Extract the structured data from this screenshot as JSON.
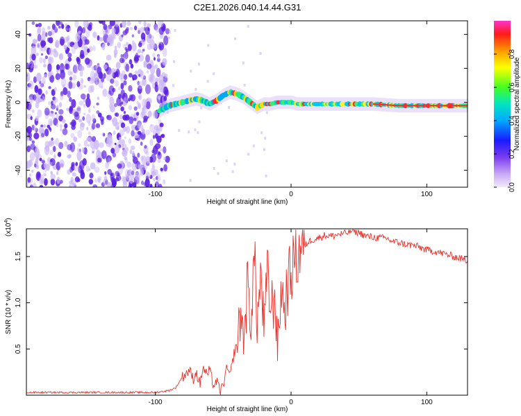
{
  "title": "C2E1.2026.040.14.44.G31",
  "colors": {
    "snr_line": "#e8302a",
    "frame": "#000000",
    "scatter_strong": "#5a1fe0",
    "scatter_weak": "#c9b4f5"
  },
  "chart_data": [
    {
      "type": "heatmap",
      "name": "spectrogram",
      "xlabel": "Height of straight line (km)",
      "ylabel": "Frequency (Hz)",
      "xlim": [
        -195,
        130
      ],
      "ylim": [
        -50,
        48
      ],
      "xticks": [
        -100,
        0,
        100
      ],
      "xtick_labels": [
        "-100",
        "0",
        "100"
      ],
      "yticks": [
        -40,
        -20,
        0,
        20,
        40
      ],
      "ytick_labels": [
        "-40",
        "-20",
        "0",
        "20",
        "40"
      ],
      "noise_region": {
        "x_from": -195,
        "x_to": -97,
        "freq_from": -50,
        "freq_to": 48
      },
      "ridge": {
        "x": [
          -97,
          -90,
          -85,
          -80,
          -75,
          -70,
          -65,
          -60,
          -55,
          -50,
          -45,
          -40,
          -35,
          -30,
          -25,
          -20,
          -15,
          -10,
          -5,
          0,
          5,
          10,
          20,
          40,
          60,
          80,
          100,
          120,
          130
        ],
        "freq": [
          -5,
          -2,
          -1,
          0,
          1,
          2,
          1,
          -1,
          1,
          4,
          6,
          5,
          3,
          0,
          -3,
          -1,
          -1,
          0,
          0,
          0,
          -1,
          -1,
          -1,
          -1,
          -1,
          -2,
          -2,
          -2,
          -2
        ]
      },
      "colorbar": {
        "label": "Normalized spectral amplitude",
        "range": [
          0.0,
          1.0
        ],
        "ticks": [
          0.0,
          0.2,
          0.4,
          0.6,
          0.8
        ],
        "tick_labels": [
          "0.0",
          "0.2",
          "0.4",
          "0.6",
          "0.8"
        ]
      }
    },
    {
      "type": "line",
      "name": "snr",
      "xlabel": "Height of straight line (km)",
      "ylabel": "SNR (10 * v/v)",
      "y_multiplier_label": "(x10",
      "y_multiplier_exp": "4",
      "xlim": [
        -195,
        130
      ],
      "ylim": [
        0,
        1.8
      ],
      "xticks": [
        -100,
        0,
        100
      ],
      "xtick_labels": [
        "-100",
        "0",
        "100"
      ],
      "yticks": [
        0.5,
        1.0,
        1.5
      ],
      "ytick_labels": [
        "0.5",
        "1.0",
        "1.5"
      ],
      "series": [
        {
          "name": "SNR",
          "x": [
            -195,
            -180,
            -160,
            -140,
            -120,
            -100,
            -90,
            -85,
            -80,
            -75,
            -72,
            -70,
            -67,
            -65,
            -62,
            -60,
            -57,
            -55,
            -52,
            -50,
            -47,
            -45,
            -42,
            -40,
            -37,
            -35,
            -32,
            -30,
            -27,
            -25,
            -22,
            -20,
            -17,
            -15,
            -12,
            -10,
            -7,
            -5,
            -2,
            0,
            3,
            5,
            8,
            10,
            12,
            15,
            20,
            25,
            30,
            35,
            40,
            45,
            50,
            55,
            60,
            65,
            70,
            75,
            80,
            85,
            90,
            95,
            100,
            105,
            110,
            115,
            120,
            125,
            130
          ],
          "y": [
            0.03,
            0.03,
            0.03,
            0.03,
            0.03,
            0.03,
            0.05,
            0.08,
            0.2,
            0.27,
            0.18,
            0.25,
            0.12,
            0.3,
            0.22,
            0.27,
            0.1,
            0.15,
            0.04,
            0.12,
            0.3,
            0.2,
            0.45,
            0.55,
            0.9,
            0.6,
            1.2,
            0.75,
            1.5,
            0.8,
            1.3,
            0.7,
            1.35,
            0.9,
            1.1,
            0.5,
            1.2,
            0.9,
            1.25,
            1.3,
            1.55,
            1.45,
            1.7,
            1.6,
            1.65,
            1.68,
            1.7,
            1.73,
            1.72,
            1.74,
            1.75,
            1.78,
            1.76,
            1.72,
            1.71,
            1.7,
            1.7,
            1.66,
            1.65,
            1.63,
            1.62,
            1.6,
            1.57,
            1.56,
            1.54,
            1.52,
            1.5,
            1.48,
            1.45
          ]
        }
      ]
    }
  ]
}
